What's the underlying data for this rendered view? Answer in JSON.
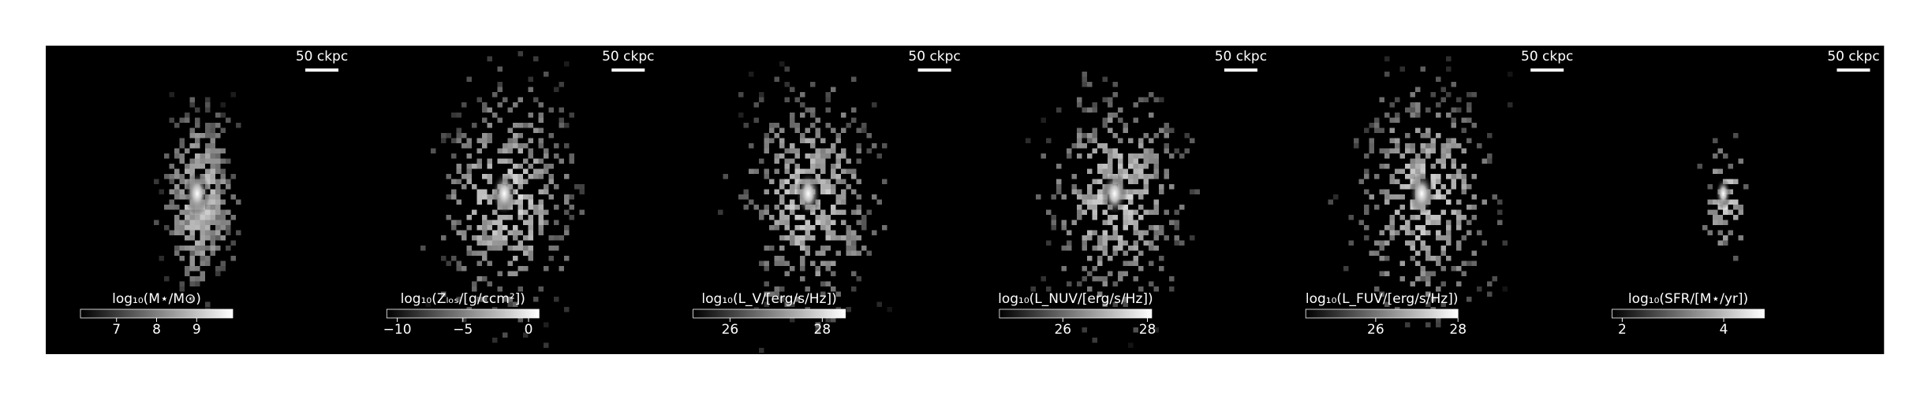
{
  "chart_data": [
    {
      "type": "image",
      "cmap": "gray",
      "scalebar": "50 ckpc",
      "colorbar": {
        "label": "log₁₀(M⋆/M⊙)",
        "clim": [
          6.1,
          9.9
        ],
        "ticks": [
          7,
          8,
          9
        ]
      }
    },
    {
      "type": "image",
      "cmap": "gray",
      "scalebar": "50 ckpc",
      "colorbar": {
        "label": "log₁₀(Zₗₒₛ/[g/ccm²])",
        "clim": [
          -10.8,
          0.8
        ],
        "ticks": [
          {
            "value": -10,
            "label": "−10"
          },
          {
            "value": -5,
            "label": "−5"
          },
          0
        ]
      }
    },
    {
      "type": "image",
      "cmap": "gray",
      "scalebar": "50 ckpc",
      "colorbar": {
        "label": "log₁₀(L_V/[erg/s/Hz])",
        "clim": [
          25.2,
          28.5
        ],
        "ticks": [
          26,
          28
        ]
      }
    },
    {
      "type": "image",
      "cmap": "gray",
      "scalebar": "50 ckpc",
      "colorbar": {
        "label": "log₁₀(L_NUV/[erg/s/Hz])",
        "clim": [
          24.5,
          28.1
        ],
        "ticks": [
          26,
          28
        ]
      }
    },
    {
      "type": "image",
      "cmap": "gray",
      "scalebar": "50 ckpc",
      "colorbar": {
        "label": "log₁₀(L_FUV/[erg/s/Hz])",
        "clim": [
          24.3,
          28.0
        ],
        "ticks": [
          26,
          28
        ]
      }
    },
    {
      "type": "image",
      "cmap": "gray",
      "scalebar": "50 ckpc",
      "colorbar": {
        "label": "log₁₀(SFR/[M⋆/yr])",
        "clim": [
          1.8,
          4.8
        ],
        "ticks": [
          2,
          4
        ]
      }
    }
  ]
}
